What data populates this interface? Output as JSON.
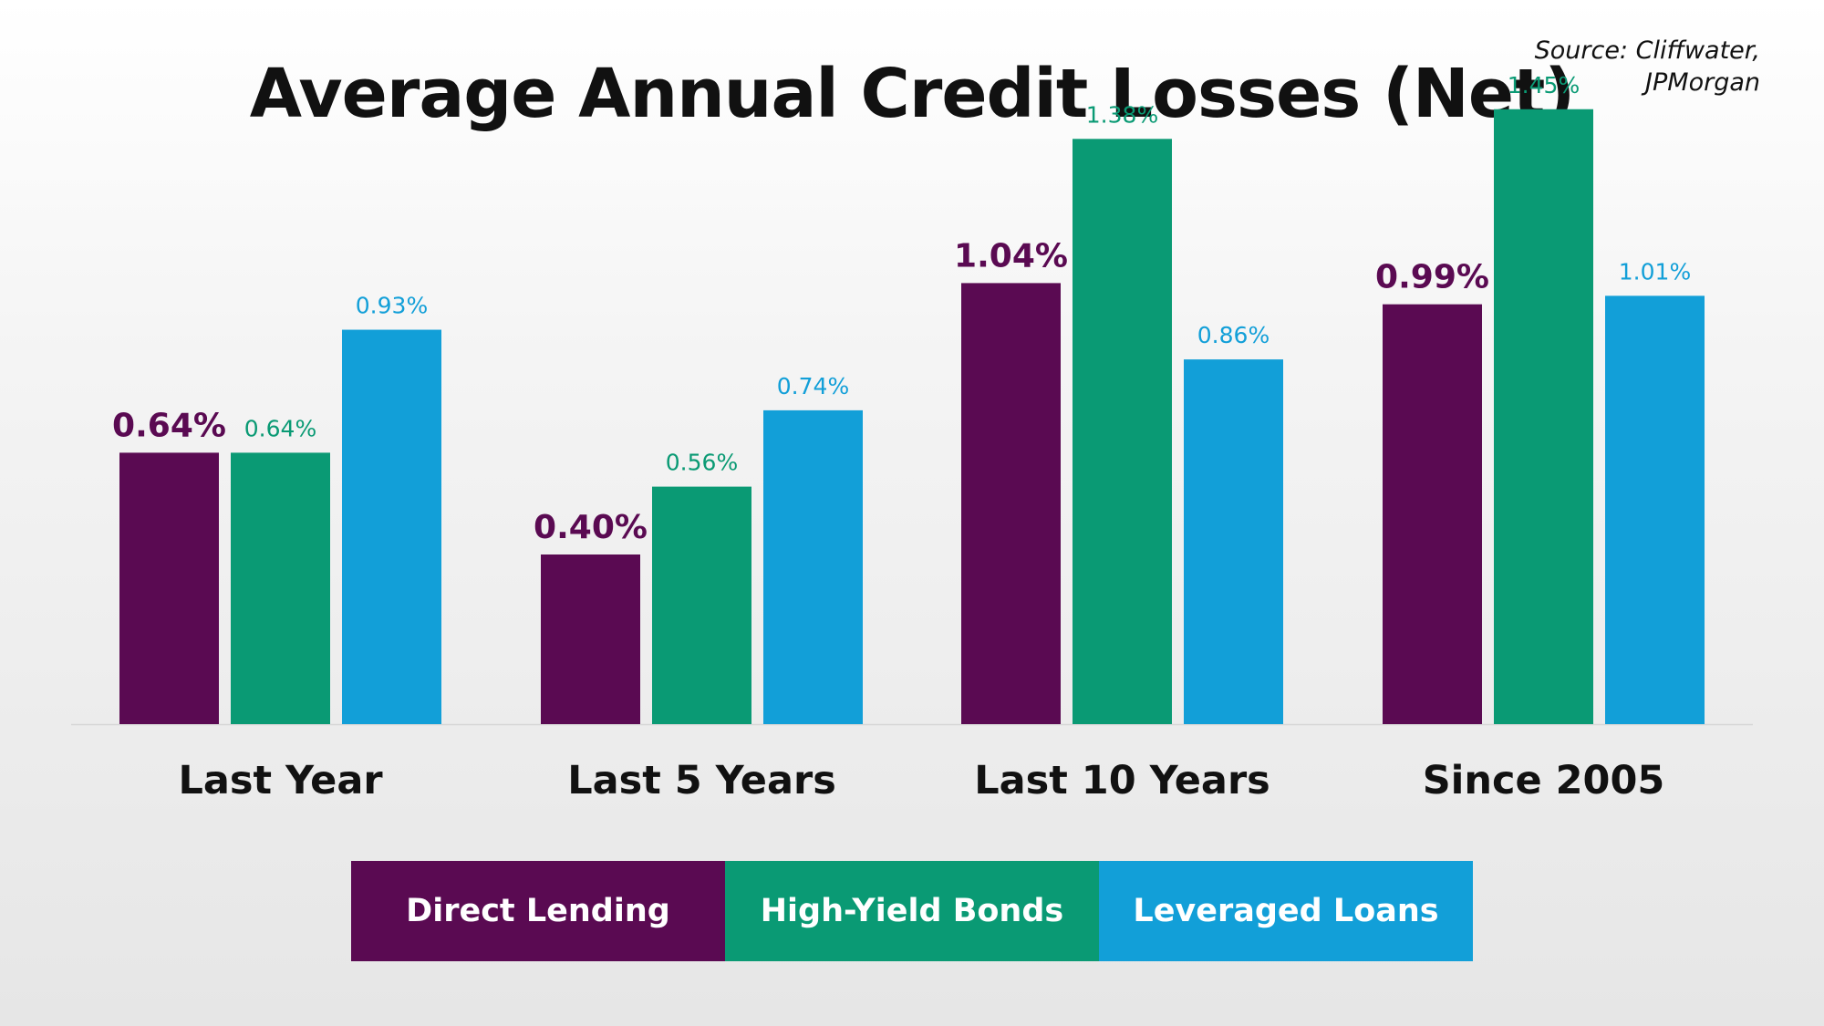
{
  "title": "Average Annual Credit Losses (Net)",
  "source": [
    "Source: Cliffwater,",
    "JPMorgan"
  ],
  "colors": {
    "direct_lending": "#5a0a52",
    "high_yield_bonds": "#0a9a74",
    "leveraged_loans": "#129fd8"
  },
  "legend": {
    "direct_lending": "Direct Lending",
    "high_yield_bonds": "High-Yield Bonds",
    "leveraged_loans": "Leveraged Loans"
  },
  "chart_data": {
    "type": "bar",
    "title": "Average Annual Credit Losses (Net)",
    "categories": [
      "Last Year",
      "Last 5 Years",
      "Last 10 Years",
      "Since 2005"
    ],
    "series": [
      {
        "name": "Direct Lending",
        "color": "#5a0a52",
        "values": [
          0.64,
          0.4,
          1.04,
          0.99
        ],
        "labels": [
          "0.64%",
          "0.40%",
          "1.04%",
          "0.99%"
        ],
        "label_emphasis": "bold-large"
      },
      {
        "name": "High-Yield Bonds",
        "color": "#0a9a74",
        "values": [
          0.64,
          0.56,
          1.38,
          1.45
        ],
        "labels": [
          "0.64%",
          "0.56%",
          "1.38%",
          "1.45%"
        ],
        "label_emphasis": "normal"
      },
      {
        "name": "Leveraged Loans",
        "color": "#129fd8",
        "values": [
          0.93,
          0.74,
          0.86,
          1.01
        ],
        "labels": [
          "0.93%",
          "0.74%",
          "0.86%",
          "1.01%"
        ],
        "label_emphasis": "normal"
      }
    ],
    "xlabel": "",
    "ylabel": "",
    "ylim": [
      0,
      1.5
    ],
    "grid": false,
    "y_axis_visible": false,
    "legend_position": "bottom"
  }
}
